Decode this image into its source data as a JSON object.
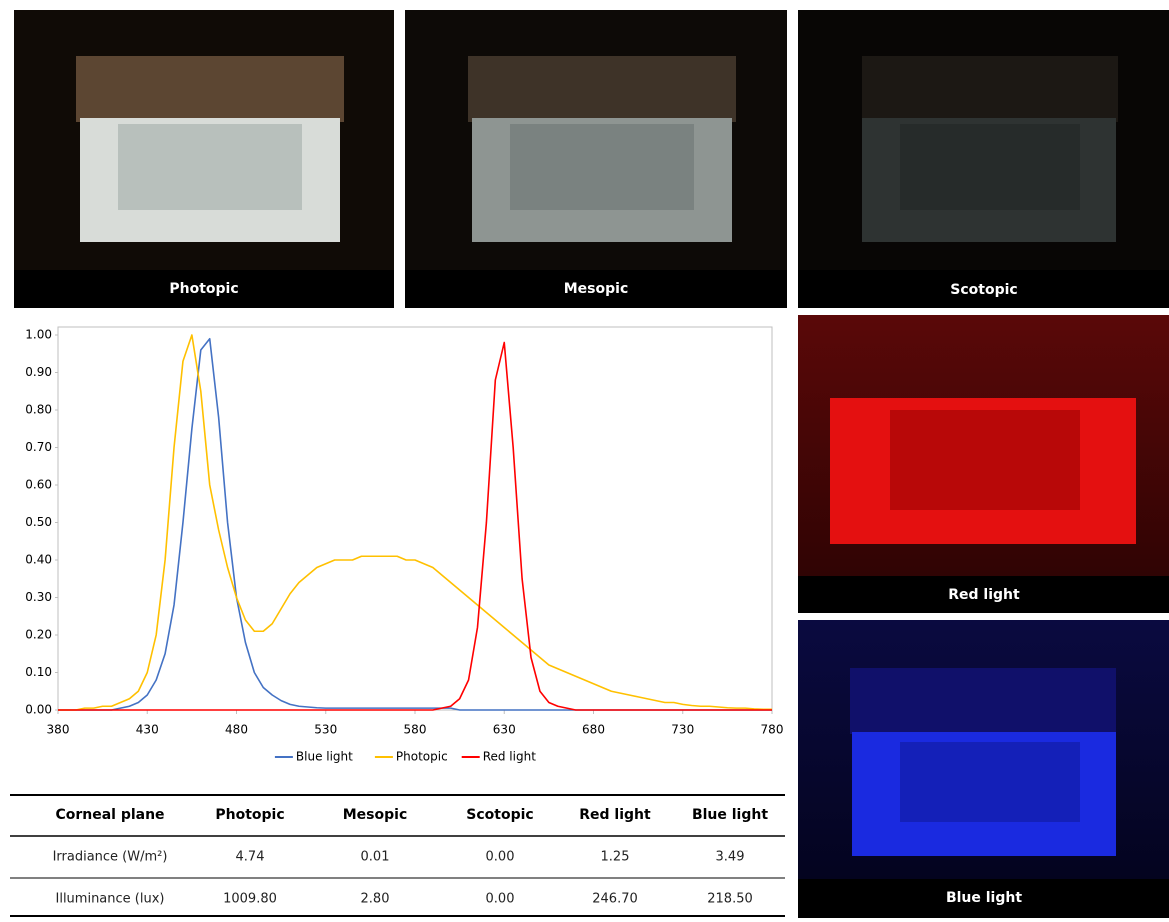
{
  "photos": [
    {
      "caption": "Photopic"
    },
    {
      "caption": "Mesopic"
    },
    {
      "caption": "Scotopic"
    },
    {
      "caption": "Red light"
    },
    {
      "caption": "Blue light"
    }
  ],
  "chart_data": {
    "type": "line",
    "x": [
      380,
      385,
      390,
      395,
      400,
      405,
      410,
      415,
      420,
      425,
      430,
      435,
      440,
      445,
      450,
      455,
      460,
      465,
      470,
      475,
      480,
      485,
      490,
      495,
      500,
      505,
      510,
      515,
      520,
      525,
      530,
      535,
      540,
      545,
      550,
      555,
      560,
      565,
      570,
      575,
      580,
      585,
      590,
      595,
      600,
      605,
      610,
      615,
      620,
      625,
      630,
      635,
      640,
      645,
      650,
      655,
      660,
      665,
      670,
      675,
      680,
      685,
      690,
      695,
      700,
      705,
      710,
      715,
      720,
      725,
      730,
      735,
      740,
      745,
      750,
      755,
      760,
      765,
      770,
      775,
      780
    ],
    "xlim": [
      380,
      780
    ],
    "xticks": [
      380,
      430,
      480,
      530,
      580,
      630,
      680,
      730,
      780
    ],
    "ylim": [
      0,
      1
    ],
    "yticks": [
      {
        "value": 0,
        "label": "0.00"
      },
      {
        "value": 0.1,
        "label": "0.10"
      },
      {
        "value": 0.2,
        "label": "0.20"
      },
      {
        "value": 0.3,
        "label": "0.30"
      },
      {
        "value": 0.4,
        "label": "0.40"
      },
      {
        "value": 0.5,
        "label": "0.50"
      },
      {
        "value": 0.6,
        "label": "0.60"
      },
      {
        "value": 0.7,
        "label": "0.70"
      },
      {
        "value": 0.8,
        "label": "0.80"
      },
      {
        "value": 0.9,
        "label": "0.90"
      },
      {
        "value": 1,
        "label": "1.00"
      }
    ],
    "legend": "bottom",
    "series": [
      {
        "name": "Blue light",
        "color": "#4472c4",
        "values": [
          0,
          0,
          0,
          0,
          0,
          0,
          0,
          0.005,
          0.01,
          0.02,
          0.04,
          0.08,
          0.15,
          0.28,
          0.5,
          0.75,
          0.96,
          0.99,
          0.78,
          0.5,
          0.3,
          0.18,
          0.1,
          0.06,
          0.04,
          0.025,
          0.015,
          0.01,
          0.008,
          0.006,
          0.005,
          0.005,
          0.005,
          0.005,
          0.005,
          0.005,
          0.005,
          0.005,
          0.005,
          0.005,
          0.005,
          0.005,
          0.005,
          0.005,
          0.005,
          0,
          0,
          0,
          0,
          0,
          0,
          0,
          0,
          0,
          0,
          0,
          0,
          0,
          0,
          0,
          0,
          0,
          0,
          0,
          0,
          0,
          0,
          0,
          0,
          0,
          0,
          0,
          0,
          0,
          0,
          0,
          0,
          0,
          0,
          0,
          0
        ]
      },
      {
        "name": "Photopic",
        "color": "#ffc000",
        "values": [
          0,
          0,
          0,
          0.005,
          0.005,
          0.01,
          0.01,
          0.02,
          0.03,
          0.05,
          0.1,
          0.2,
          0.4,
          0.7,
          0.93,
          1.0,
          0.85,
          0.6,
          0.48,
          0.38,
          0.3,
          0.24,
          0.21,
          0.21,
          0.23,
          0.27,
          0.31,
          0.34,
          0.36,
          0.38,
          0.39,
          0.4,
          0.4,
          0.4,
          0.41,
          0.41,
          0.41,
          0.41,
          0.41,
          0.4,
          0.4,
          0.39,
          0.38,
          0.36,
          0.34,
          0.32,
          0.3,
          0.28,
          0.26,
          0.24,
          0.22,
          0.2,
          0.18,
          0.16,
          0.14,
          0.12,
          0.11,
          0.1,
          0.09,
          0.08,
          0.07,
          0.06,
          0.05,
          0.045,
          0.04,
          0.035,
          0.03,
          0.025,
          0.02,
          0.02,
          0.015,
          0.012,
          0.01,
          0.01,
          0.008,
          0.006,
          0.005,
          0.005,
          0.003,
          0.002,
          0.002
        ]
      },
      {
        "name": "Red light",
        "color": "#ff0000",
        "values": [
          0,
          0,
          0,
          0,
          0,
          0,
          0,
          0,
          0,
          0,
          0,
          0,
          0,
          0,
          0,
          0,
          0,
          0,
          0,
          0,
          0,
          0,
          0,
          0,
          0,
          0,
          0,
          0,
          0,
          0,
          0,
          0,
          0,
          0,
          0,
          0,
          0,
          0,
          0,
          0,
          0,
          0,
          0,
          0.005,
          0.01,
          0.03,
          0.08,
          0.22,
          0.5,
          0.88,
          0.98,
          0.7,
          0.35,
          0.14,
          0.05,
          0.02,
          0.01,
          0.005,
          0,
          0,
          0,
          0,
          0,
          0,
          0,
          0,
          0,
          0,
          0,
          0,
          0,
          0,
          0,
          0,
          0,
          0,
          0,
          0,
          0,
          0,
          0
        ]
      }
    ]
  },
  "table": {
    "header": [
      "Corneal plane",
      "Photopic",
      "Mesopic",
      "Scotopic",
      "Red light",
      "Blue light"
    ],
    "rows": [
      [
        "Irradiance (W/m²)",
        "4.74",
        "0.01",
        "0.00",
        "1.25",
        "3.49"
      ],
      [
        "Illuminance (lux)",
        "1009.80",
        "2.80",
        "0.00",
        "246.70",
        "218.50"
      ]
    ]
  }
}
